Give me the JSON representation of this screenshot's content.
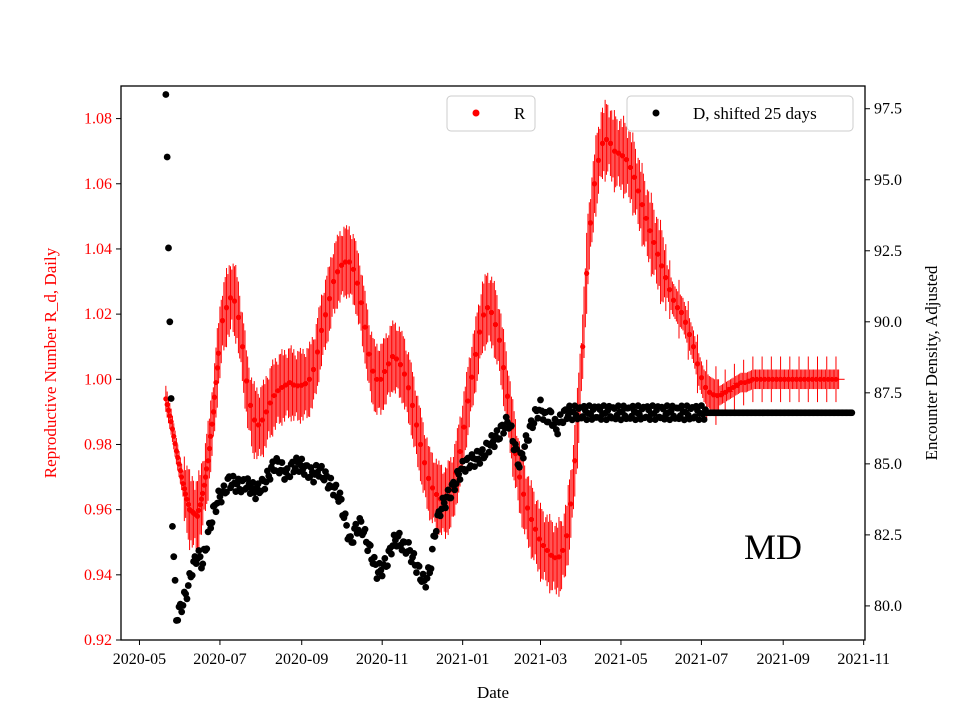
{
  "chart_data": {
    "type": "scatter",
    "state_label": "MD",
    "xlabel": "Date",
    "ylabel_left": "Reproductive Number R_d, Daily",
    "ylabel_right": "Encounter Density, Adjusted",
    "x_ticks": [
      "2020-05",
      "2020-07",
      "2020-09",
      "2020-11",
      "2021-01",
      "2021-03",
      "2021-05",
      "2021-07",
      "2021-09",
      "2021-11"
    ],
    "xlim_days": [
      -14,
      550
    ],
    "ylim_left": [
      0.92,
      1.09
    ],
    "ylim_right": [
      78.8,
      98.3
    ],
    "yticks_left": [
      "0.92",
      "0.94",
      "0.96",
      "0.98",
      "1.00",
      "1.02",
      "1.04",
      "1.06",
      "1.08"
    ],
    "yticks_right": [
      "80.0",
      "82.5",
      "85.0",
      "87.5",
      "90.0",
      "92.5",
      "95.0",
      "97.5"
    ],
    "legend_r": "R",
    "legend_d": "D, shifted 25 days",
    "colors": {
      "r_series": "#ff0000",
      "d_series": "#000000",
      "left_axis": "#ff0000"
    },
    "series_r_anchors": {
      "day_since_2020_05_01": [
        20,
        24,
        28,
        33,
        38,
        44,
        48,
        52,
        56,
        60,
        63,
        66,
        70,
        74,
        78,
        82,
        86,
        90,
        94,
        98,
        102,
        106,
        110,
        114,
        118,
        122,
        128,
        133,
        138,
        143,
        147,
        151,
        155,
        159,
        163,
        167,
        171,
        175,
        179,
        183,
        188,
        192,
        196,
        200,
        205,
        210,
        215,
        220,
        226,
        232,
        238,
        244,
        250,
        256,
        260,
        264,
        268,
        273,
        278,
        283,
        288,
        292,
        296,
        300,
        304,
        308,
        312,
        316,
        320,
        324,
        328,
        332,
        336,
        340,
        345,
        350,
        355,
        360,
        365,
        370,
        375,
        380,
        385,
        390,
        395,
        400,
        404,
        408,
        412,
        416,
        420,
        424,
        428,
        432,
        436,
        440,
        444,
        448,
        452,
        456,
        460,
        465,
        470,
        475,
        480,
        485,
        490,
        495,
        500,
        505,
        510,
        515,
        520,
        525,
        530
      ],
      "value": [
        0.994,
        0.987,
        0.978,
        0.968,
        0.96,
        0.958,
        0.965,
        0.975,
        0.99,
        1.008,
        1.018,
        1.022,
        1.026,
        1.022,
        1.01,
        0.996,
        0.988,
        0.986,
        0.988,
        0.992,
        0.995,
        0.997,
        0.998,
        0.999,
        0.998,
        0.998,
        0.999,
        1.004,
        1.015,
        1.023,
        1.03,
        1.034,
        1.036,
        1.036,
        1.033,
        1.026,
        1.016,
        1.005,
        1.0,
        1.0,
        1.004,
        1.007,
        1.006,
        1.003,
        0.996,
        0.986,
        0.976,
        0.968,
        0.964,
        0.962,
        0.967,
        0.98,
        0.996,
        1.01,
        1.019,
        1.022,
        1.02,
        1.012,
        0.998,
        0.982,
        0.97,
        0.963,
        0.958,
        0.954,
        0.95,
        0.948,
        0.946,
        0.945,
        0.946,
        0.952,
        0.965,
        0.985,
        1.01,
        1.04,
        1.06,
        1.072,
        1.074,
        1.07,
        1.069,
        1.067,
        1.062,
        1.055,
        1.048,
        1.042,
        1.036,
        1.03,
        1.025,
        1.022,
        1.02,
        1.015,
        1.01,
        1.003,
        0.998,
        0.996,
        0.995,
        0.995,
        0.996,
        0.997,
        0.998,
        0.999,
        0.999,
        1.0,
        1.0,
        1.0,
        1.0,
        1.0,
        1.0,
        1.0,
        1.0,
        1.0,
        1.0,
        1.0,
        1.0,
        1.0,
        1.0
      ]
    },
    "series_d_anchors": {
      "day_since_2020_05_01": [
        20,
        21,
        22,
        23,
        24,
        25,
        28,
        32,
        36,
        40,
        44,
        48,
        52,
        56,
        60,
        64,
        68,
        72,
        76,
        80,
        84,
        88,
        92,
        96,
        100,
        104,
        108,
        112,
        116,
        120,
        124,
        128,
        132,
        136,
        140,
        144,
        148,
        152,
        156,
        160,
        164,
        168,
        172,
        176,
        180,
        184,
        188,
        192,
        196,
        200,
        204,
        208,
        212,
        216,
        220,
        224,
        228,
        232,
        236,
        240,
        244,
        248,
        252,
        256,
        260,
        264,
        268,
        272,
        276,
        280,
        284,
        288,
        292,
        296,
        300,
        304,
        308,
        312,
        316,
        320,
        324,
        328,
        332,
        336,
        340,
        344,
        348,
        352,
        356,
        360,
        364,
        368,
        372,
        376,
        380,
        384,
        388,
        392,
        396,
        400,
        420,
        450,
        480,
        510,
        540
      ],
      "value": [
        98.0,
        95.8,
        92.6,
        90.0,
        87.3,
        82.8,
        79.6,
        80.0,
        80.5,
        81.3,
        81.8,
        81.5,
        82.5,
        83.3,
        83.8,
        84.0,
        84.4,
        84.3,
        84.2,
        84.3,
        84.2,
        84.0,
        84.2,
        84.4,
        84.8,
        85.0,
        84.8,
        84.6,
        84.9,
        85.0,
        84.9,
        84.7,
        84.6,
        84.8,
        84.6,
        84.3,
        84.1,
        83.8,
        83.0,
        82.2,
        82.7,
        82.9,
        82.3,
        81.8,
        81.2,
        81.3,
        81.6,
        82.2,
        82.4,
        82.1,
        82.0,
        81.6,
        81.2,
        80.8,
        81.2,
        82.6,
        83.4,
        83.7,
        84.0,
        84.4,
        84.8,
        85.0,
        85.1,
        85.2,
        85.3,
        85.6,
        85.8,
        86.0,
        86.3,
        86.5,
        85.7,
        85.0,
        85.6,
        86.2,
        86.7,
        87.0,
        86.6,
        86.7,
        86.2,
        86.6,
        86.8,
        86.8,
        86.8,
        86.8,
        86.8,
        86.8,
        86.8,
        86.8,
        86.8,
        86.8,
        86.8,
        86.8,
        86.8,
        86.8,
        86.8,
        86.8,
        86.8,
        86.8,
        86.8,
        86.8,
        86.8,
        86.8,
        86.8,
        86.8,
        86.8
      ]
    }
  }
}
